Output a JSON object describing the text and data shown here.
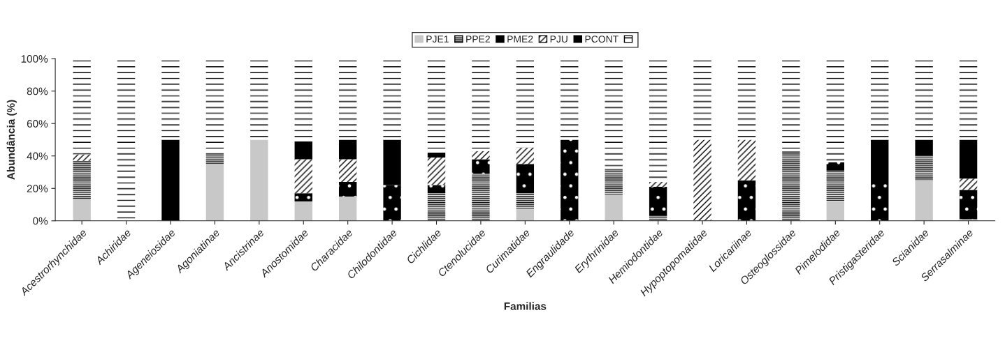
{
  "chart_data": {
    "type": "bar",
    "stacked": true,
    "xlabel": "Familias",
    "ylabel": "Abundância (%)",
    "categories": [
      "Acestrorhynchidae",
      "Achiridae",
      "Ageneiosidae",
      "Agoniatinae",
      "Ancistrinae",
      "Anostomidae",
      "Characidae",
      "Chilodontidae",
      "Cichlidae",
      "Ctenolucidae",
      "Curimatidae",
      "Engraulidade",
      "Erythrinidae",
      "Hemiodontidae",
      "Hypoptopomatidae",
      "Loricariinae",
      "Osteoglossidae",
      "Pimelodidae",
      "Pristigasteridae",
      "Scianidae",
      "Serrasalminae"
    ],
    "series": [
      {
        "name": "PJE1",
        "color": "#c8c8c8",
        "values": [
          13,
          0,
          0,
          35,
          50,
          12,
          15,
          0,
          0,
          0,
          7,
          0,
          16,
          0,
          0,
          0,
          0,
          12,
          0,
          25,
          1
        ]
      },
      {
        "name": "PPE2",
        "color": "#ffffff",
        "values": [
          24,
          0,
          0,
          7,
          0,
          0,
          0,
          0,
          17,
          29,
          10,
          0,
          16,
          3,
          0,
          0,
          43,
          19,
          0,
          15,
          0
        ]
      },
      {
        "name": "PME2",
        "color": "#000000",
        "values": [
          0,
          0,
          0,
          0,
          0,
          5,
          9,
          22,
          5,
          9,
          18,
          50,
          0,
          18,
          0,
          25,
          0,
          5,
          24,
          0,
          18
        ]
      },
      {
        "name": "PJU",
        "color": "#ffffff",
        "values": [
          4,
          0,
          0,
          0,
          0,
          21,
          14,
          0,
          17,
          5,
          10,
          0,
          0,
          3,
          50,
          25,
          0,
          0,
          0,
          0,
          7
        ]
      },
      {
        "name": "PCONT",
        "color": "#000000",
        "values": [
          0,
          0,
          50,
          0,
          0,
          11,
          12,
          28,
          3,
          0,
          0,
          0,
          0,
          0,
          0,
          0,
          0,
          0,
          26,
          10,
          24
        ]
      },
      {
        "color": "#ffffff",
        "values": [
          59,
          100,
          50,
          58,
          50,
          51,
          50,
          50,
          58,
          57,
          55,
          50,
          68,
          76,
          50,
          50,
          57,
          64,
          50,
          50,
          50
        ]
      }
    ],
    "ylim": [
      0,
      100
    ],
    "yticks": [
      {
        "value": 0,
        "label": "0%"
      },
      {
        "value": 20,
        "label": "20%"
      },
      {
        "value": 40,
        "label": "40%"
      },
      {
        "value": 60,
        "label": "60%"
      },
      {
        "value": 80,
        "label": "80%"
      },
      {
        "value": 100,
        "label": "100%"
      }
    ],
    "grid": false,
    "legend": "top"
  }
}
